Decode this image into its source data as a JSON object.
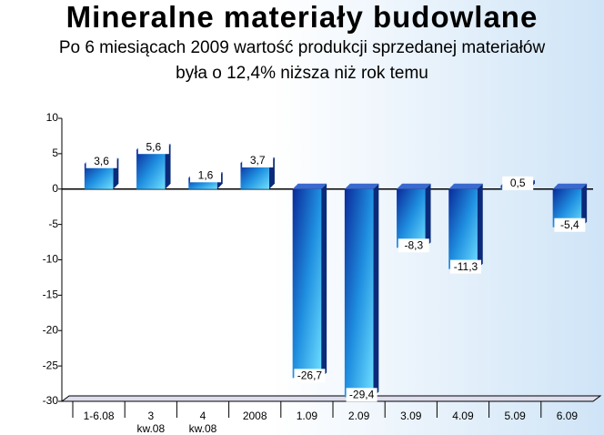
{
  "chart_data": {
    "type": "bar",
    "title": "Mineralne materiały budowlane",
    "subtitle": [
      "Po 6 miesiącach 2009  wartość produkcji sprzedanej materiałów",
      "była o 12,4% niższa niż rok temu"
    ],
    "categories": [
      "1-6.08",
      "3 kw.08",
      "4 kw.08",
      "2008",
      "1.09",
      "2.09",
      "3.09",
      "4.09",
      "5.09",
      "6.09"
    ],
    "values": [
      3.6,
      5.6,
      1.6,
      3.7,
      -26.7,
      -29.4,
      -8.3,
      -11.3,
      0.5,
      -5.4
    ],
    "value_labels": [
      "3,6",
      "5,6",
      "1,6",
      "3,7",
      "-26,7",
      "-29,4",
      "-8,3",
      "-11,3",
      "0,5",
      "-5,4"
    ],
    "color": "#1f8fe0",
    "ylim": [
      -30,
      10
    ],
    "yticks": [
      -30,
      -25,
      -20,
      -15,
      -10,
      -5,
      0,
      5,
      10
    ]
  }
}
